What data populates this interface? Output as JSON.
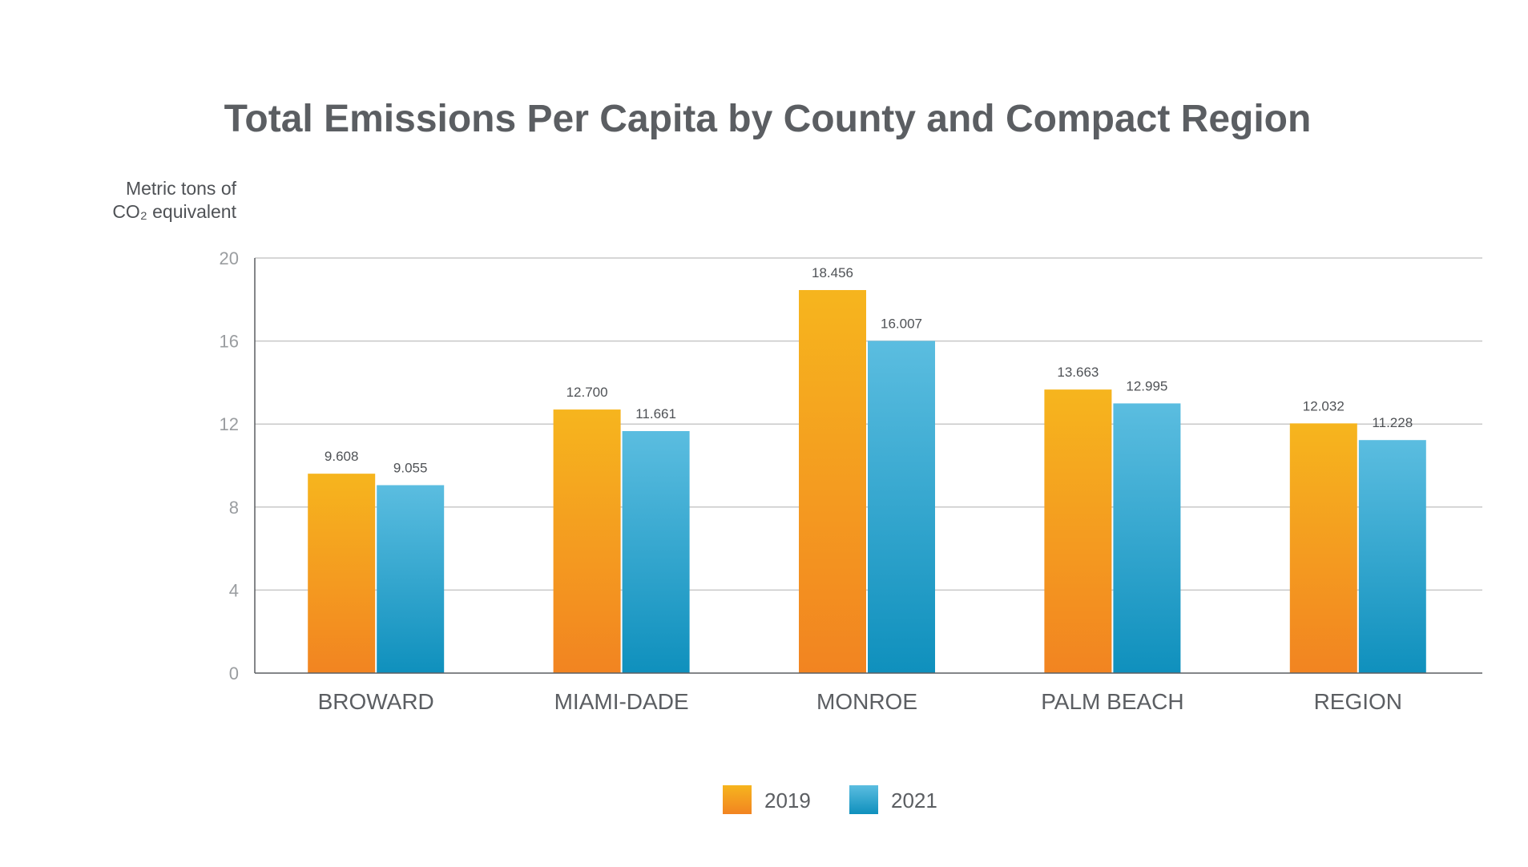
{
  "chart_data": {
    "type": "bar",
    "title": "Total Emissions Per Capita by County and Compact Region",
    "ylabel_lines": [
      "Metric tons of",
      "CO₂ equivalent"
    ],
    "categories": [
      "BROWARD",
      "MIAMI-DADE",
      "MONROE",
      "PALM BEACH",
      "REGION"
    ],
    "series": [
      {
        "name": "2019",
        "values": [
          9.608,
          12.7,
          18.456,
          13.663,
          12.032
        ],
        "labels": [
          "9.608",
          "12.700",
          "18.456",
          "13.663",
          "12.032"
        ]
      },
      {
        "name": "2021",
        "values": [
          9.055,
          11.661,
          16.007,
          12.995,
          11.228
        ],
        "labels": [
          "9.055",
          "11.661",
          "16.007",
          "12.995",
          "11.228"
        ]
      }
    ],
    "ylim": [
      0,
      20
    ],
    "yticks": [
      "0",
      "4",
      "8",
      "12",
      "16",
      "20"
    ],
    "grid": true,
    "legend_position": "bottom",
    "colors": {
      "2019_top": "#f6b51e",
      "2019_bottom": "#f28421",
      "2021_top": "#5bbde0",
      "2021_bottom": "#0f90bd",
      "gridline": "#c8c8c8",
      "axis": "#5b5e62"
    }
  }
}
